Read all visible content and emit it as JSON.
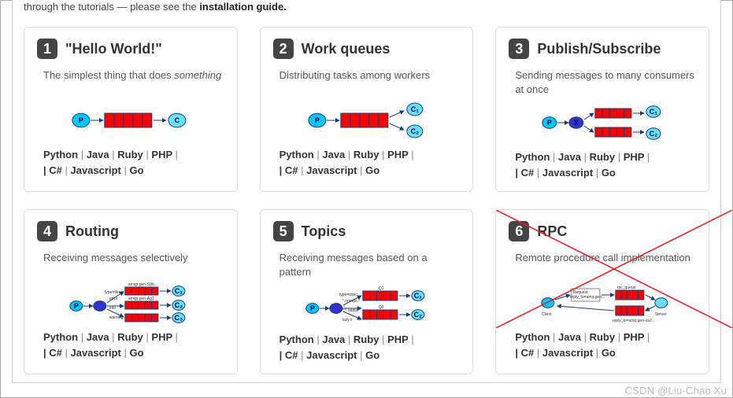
{
  "crumb_prefix": "through the tutorials — please see the ",
  "crumb_bold": "installation guide.",
  "languages": [
    "Python",
    "Java",
    "Ruby",
    "PHP",
    "C#",
    "Javascript",
    "Go"
  ],
  "watermark": "CSDN @Liu-Chao Xu",
  "colors": {
    "node_p": "#00c8ff",
    "node_c": "#66e0ff",
    "node_x": "#3333cc",
    "queue": "#ff0000",
    "stroke": "#1a3d7a",
    "cross": "#e02020"
  },
  "cards": [
    {
      "n": "1",
      "title": "\"Hello World!\"",
      "desc": "The simplest thing that does <em>something</em>",
      "diagram": "hello",
      "crossed": false
    },
    {
      "n": "2",
      "title": "Work queues",
      "desc": "Distributing tasks among workers",
      "diagram": "work",
      "crossed": false
    },
    {
      "n": "3",
      "title": "Publish/Subscribe",
      "desc": "Sending messages to many consumers at once",
      "diagram": "pubsub",
      "crossed": false
    },
    {
      "n": "4",
      "title": "Routing",
      "desc": "Receiving messages selectively",
      "diagram": "routing",
      "crossed": false
    },
    {
      "n": "5",
      "title": "Topics",
      "desc": "Receiving messages based on a pattern",
      "diagram": "topics",
      "crossed": false
    },
    {
      "n": "6",
      "title": "RPC",
      "desc": "Remote procedure call implementation",
      "diagram": "rpc",
      "crossed": true
    }
  ]
}
